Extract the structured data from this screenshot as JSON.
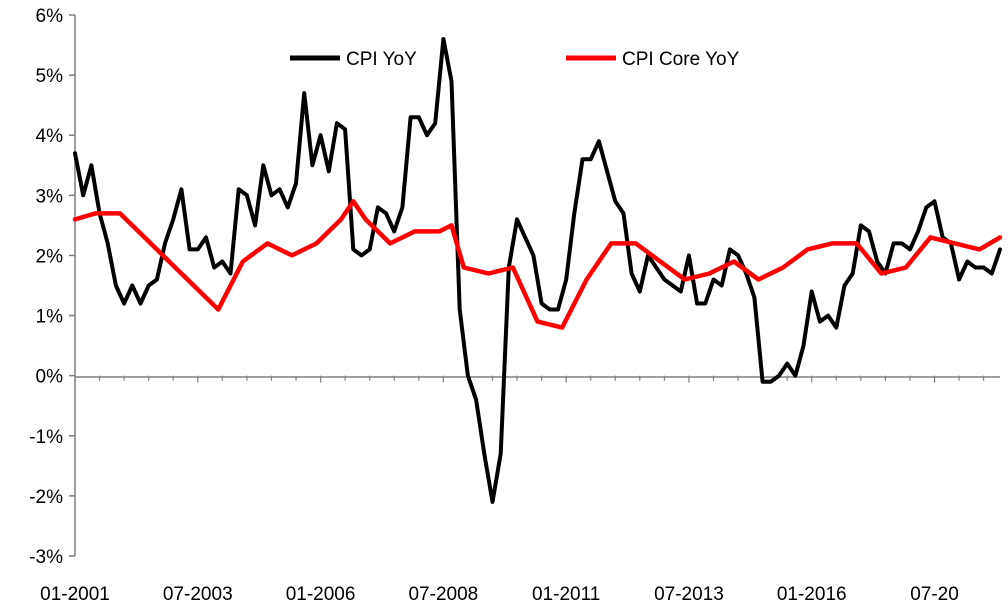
{
  "chart_data": {
    "type": "line",
    "title": "",
    "xlabel": "",
    "ylabel": "",
    "ylim": [
      -3,
      6
    ],
    "y_ticks": [
      -3,
      -2,
      -1,
      0,
      1,
      2,
      3,
      4,
      5,
      6
    ],
    "y_tick_labels": [
      "-3%",
      "-2%",
      "-1%",
      "0%",
      "1%",
      "2%",
      "3%",
      "4%",
      "5%",
      "6%"
    ],
    "y_unit": "%",
    "x_range": [
      "2001-01",
      "2019-11"
    ],
    "x_tick_labels": [
      "01-2001",
      "07-2003",
      "01-2006",
      "07-2008",
      "01-2011",
      "07-2013",
      "01-2016",
      "07-20"
    ],
    "x_tick_positions": [
      "2001-01",
      "2003-07",
      "2006-01",
      "2008-07",
      "2011-01",
      "2013-07",
      "2016-01",
      "2018-07"
    ],
    "grid": false,
    "legend_position": "top",
    "series": [
      {
        "name": "CPI YoY",
        "color": "#000000",
        "points": [
          [
            "2001-01",
            3.7
          ],
          [
            "2001-03",
            3.0
          ],
          [
            "2001-05",
            3.5
          ],
          [
            "2001-07",
            2.7
          ],
          [
            "2001-09",
            2.2
          ],
          [
            "2001-11",
            1.5
          ],
          [
            "2002-01",
            1.2
          ],
          [
            "2002-03",
            1.5
          ],
          [
            "2002-05",
            1.2
          ],
          [
            "2002-07",
            1.5
          ],
          [
            "2002-09",
            1.6
          ],
          [
            "2002-11",
            2.2
          ],
          [
            "2003-01",
            2.6
          ],
          [
            "2003-03",
            3.1
          ],
          [
            "2003-05",
            2.1
          ],
          [
            "2003-07",
            2.1
          ],
          [
            "2003-09",
            2.3
          ],
          [
            "2003-11",
            1.8
          ],
          [
            "2004-01",
            1.9
          ],
          [
            "2004-03",
            1.7
          ],
          [
            "2004-05",
            3.1
          ],
          [
            "2004-07",
            3.0
          ],
          [
            "2004-09",
            2.5
          ],
          [
            "2004-11",
            3.5
          ],
          [
            "2005-01",
            3.0
          ],
          [
            "2005-03",
            3.1
          ],
          [
            "2005-05",
            2.8
          ],
          [
            "2005-07",
            3.2
          ],
          [
            "2005-09",
            4.7
          ],
          [
            "2005-11",
            3.5
          ],
          [
            "2006-01",
            4.0
          ],
          [
            "2006-03",
            3.4
          ],
          [
            "2006-05",
            4.2
          ],
          [
            "2006-07",
            4.1
          ],
          [
            "2006-09",
            2.1
          ],
          [
            "2006-11",
            2.0
          ],
          [
            "2007-01",
            2.1
          ],
          [
            "2007-03",
            2.8
          ],
          [
            "2007-05",
            2.7
          ],
          [
            "2007-07",
            2.4
          ],
          [
            "2007-09",
            2.8
          ],
          [
            "2007-11",
            4.3
          ],
          [
            "2008-01",
            4.3
          ],
          [
            "2008-03",
            4.0
          ],
          [
            "2008-05",
            4.2
          ],
          [
            "2008-07",
            5.6
          ],
          [
            "2008-09",
            4.9
          ],
          [
            "2008-11",
            1.1
          ],
          [
            "2009-01",
            0.0
          ],
          [
            "2009-03",
            -0.4
          ],
          [
            "2009-05",
            -1.3
          ],
          [
            "2009-07",
            -2.1
          ],
          [
            "2009-09",
            -1.3
          ],
          [
            "2009-11",
            1.8
          ],
          [
            "2010-01",
            2.6
          ],
          [
            "2010-03",
            2.3
          ],
          [
            "2010-05",
            2.0
          ],
          [
            "2010-07",
            1.2
          ],
          [
            "2010-09",
            1.1
          ],
          [
            "2010-11",
            1.1
          ],
          [
            "2011-01",
            1.6
          ],
          [
            "2011-03",
            2.7
          ],
          [
            "2011-05",
            3.6
          ],
          [
            "2011-07",
            3.6
          ],
          [
            "2011-09",
            3.9
          ],
          [
            "2011-11",
            3.4
          ],
          [
            "2012-01",
            2.9
          ],
          [
            "2012-03",
            2.7
          ],
          [
            "2012-05",
            1.7
          ],
          [
            "2012-07",
            1.4
          ],
          [
            "2012-09",
            2.0
          ],
          [
            "2012-11",
            1.8
          ],
          [
            "2013-01",
            1.6
          ],
          [
            "2013-03",
            1.5
          ],
          [
            "2013-05",
            1.4
          ],
          [
            "2013-07",
            2.0
          ],
          [
            "2013-09",
            1.2
          ],
          [
            "2013-11",
            1.2
          ],
          [
            "2014-01",
            1.6
          ],
          [
            "2014-03",
            1.5
          ],
          [
            "2014-05",
            2.1
          ],
          [
            "2014-07",
            2.0
          ],
          [
            "2014-09",
            1.7
          ],
          [
            "2014-11",
            1.3
          ],
          [
            "2015-01",
            -0.1
          ],
          [
            "2015-03",
            -0.1
          ],
          [
            "2015-05",
            0.0
          ],
          [
            "2015-07",
            0.2
          ],
          [
            "2015-09",
            0.0
          ],
          [
            "2015-11",
            0.5
          ],
          [
            "2016-01",
            1.4
          ],
          [
            "2016-03",
            0.9
          ],
          [
            "2016-05",
            1.0
          ],
          [
            "2016-07",
            0.8
          ],
          [
            "2016-09",
            1.5
          ],
          [
            "2016-11",
            1.7
          ],
          [
            "2017-01",
            2.5
          ],
          [
            "2017-03",
            2.4
          ],
          [
            "2017-05",
            1.9
          ],
          [
            "2017-07",
            1.7
          ],
          [
            "2017-09",
            2.2
          ],
          [
            "2017-11",
            2.2
          ],
          [
            "2018-01",
            2.1
          ],
          [
            "2018-03",
            2.4
          ],
          [
            "2018-05",
            2.8
          ],
          [
            "2018-07",
            2.9
          ],
          [
            "2018-09",
            2.3
          ],
          [
            "2018-11",
            2.2
          ],
          [
            "2019-01",
            1.6
          ],
          [
            "2019-03",
            1.9
          ],
          [
            "2019-05",
            1.8
          ],
          [
            "2019-07",
            1.8
          ],
          [
            "2019-09",
            1.7
          ],
          [
            "2019-11",
            2.1
          ]
        ]
      },
      {
        "name": "CPI Core YoY",
        "color": "#ff0000",
        "points": [
          [
            "2001-01",
            2.6
          ],
          [
            "2001-06",
            2.7
          ],
          [
            "2001-12",
            2.7
          ],
          [
            "2002-06",
            2.3
          ],
          [
            "2002-12",
            1.9
          ],
          [
            "2003-06",
            1.5
          ],
          [
            "2003-12",
            1.1
          ],
          [
            "2004-06",
            1.9
          ],
          [
            "2004-12",
            2.2
          ],
          [
            "2005-06",
            2.0
          ],
          [
            "2005-12",
            2.2
          ],
          [
            "2006-06",
            2.6
          ],
          [
            "2006-09",
            2.9
          ],
          [
            "2006-12",
            2.6
          ],
          [
            "2007-06",
            2.2
          ],
          [
            "2007-12",
            2.4
          ],
          [
            "2008-06",
            2.4
          ],
          [
            "2008-09",
            2.5
          ],
          [
            "2008-12",
            1.8
          ],
          [
            "2009-06",
            1.7
          ],
          [
            "2009-12",
            1.8
          ],
          [
            "2010-06",
            0.9
          ],
          [
            "2010-12",
            0.8
          ],
          [
            "2011-06",
            1.6
          ],
          [
            "2011-12",
            2.2
          ],
          [
            "2012-06",
            2.2
          ],
          [
            "2012-12",
            1.9
          ],
          [
            "2013-06",
            1.6
          ],
          [
            "2013-12",
            1.7
          ],
          [
            "2014-06",
            1.9
          ],
          [
            "2014-12",
            1.6
          ],
          [
            "2015-06",
            1.8
          ],
          [
            "2015-12",
            2.1
          ],
          [
            "2016-06",
            2.2
          ],
          [
            "2016-12",
            2.2
          ],
          [
            "2017-06",
            1.7
          ],
          [
            "2017-12",
            1.8
          ],
          [
            "2018-06",
            2.3
          ],
          [
            "2018-12",
            2.2
          ],
          [
            "2019-06",
            2.1
          ],
          [
            "2019-11",
            2.3
          ]
        ]
      }
    ]
  }
}
